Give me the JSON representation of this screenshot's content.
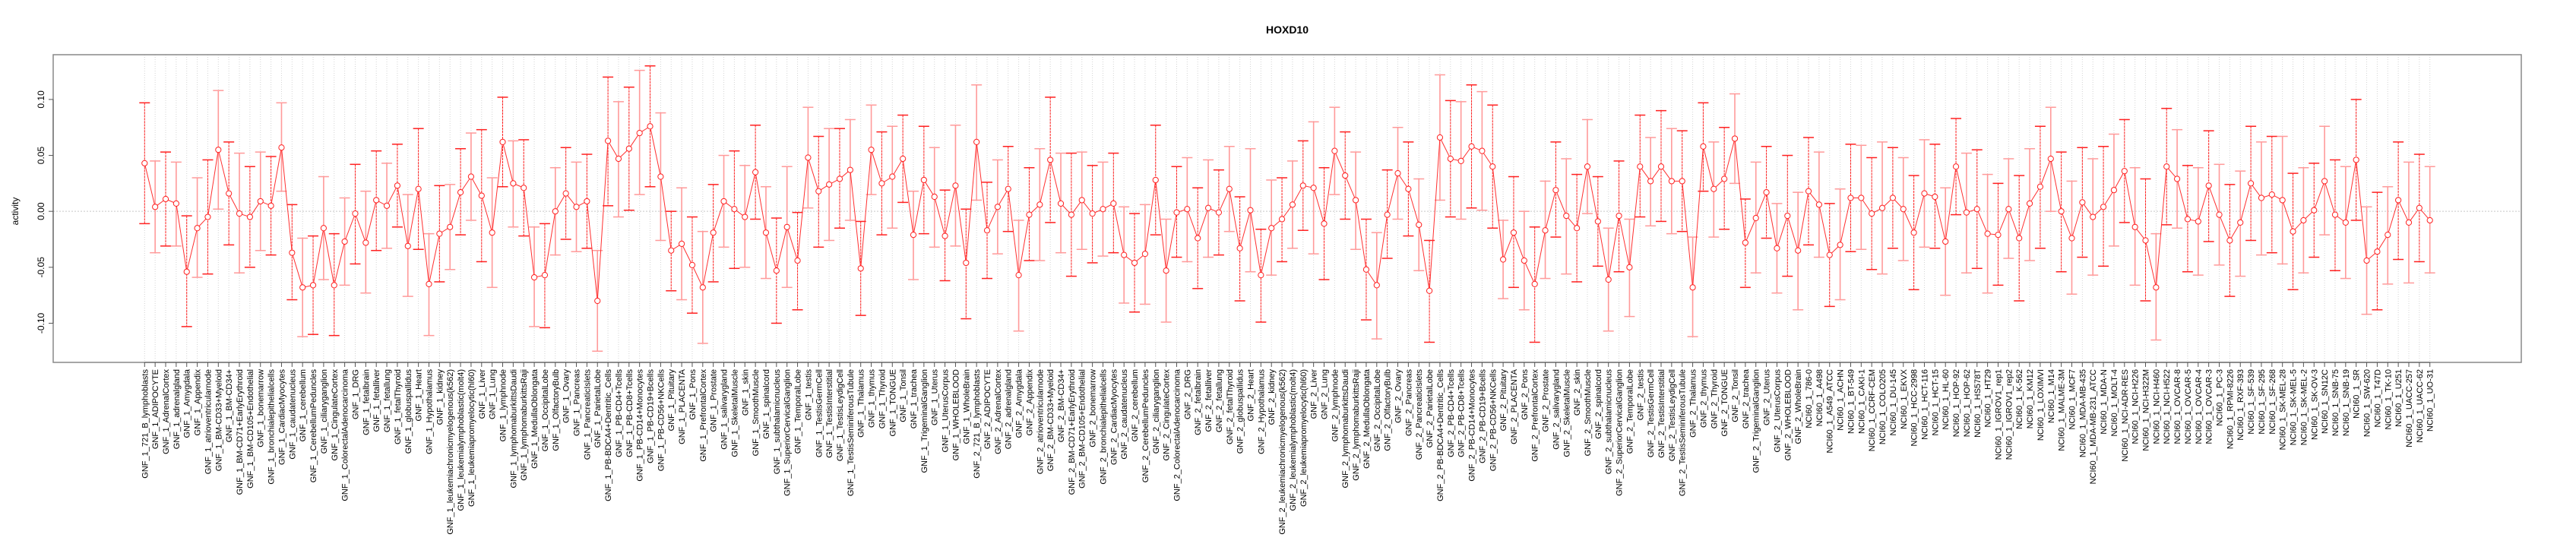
{
  "chart_data": {
    "type": "line",
    "title": "HOXD10",
    "xlabel": "",
    "ylabel": "activity",
    "ylim": [
      -0.135,
      0.14
    ],
    "yticks": [
      -0.1,
      -0.05,
      0.0,
      0.05,
      0.1
    ],
    "ytick_labels": [
      "-0.10",
      "-0.05",
      "0.00",
      "0.05",
      "0.10"
    ],
    "grid": "vertical dotted at each category, horizontal dotted at 0",
    "series_color": "#ff0000",
    "categories": [
      "GNF_1_721_B_lymphoblasts",
      "GNF_1_ADIPOCYTE",
      "GNF_1_AdrenalCortex",
      "GNF_1_adrenalgland",
      "GNF_1_Amygdala",
      "GNF_1_Appendix",
      "GNF_1_atrioventricularnode",
      "GNF_1_BM-CD33+Myeloid",
      "GNF_1_BM-CD34+",
      "GNF_1_BM-CD71+EarlyErythroid",
      "GNF_1_BM-CD105+Endothelial",
      "GNF_1_bonemarrow",
      "GNF_1_bronchialepithelialcells",
      "GNF_1_CardiacMyocytes",
      "GNF_1_caudatenucleus",
      "GNF_1_cerebellum",
      "GNF_1_CerebellumPeduncles",
      "GNF_1_ciliaryganglion",
      "GNF_1_CingulateCortex",
      "GNF_1_ColorectalAdenocarcinoma",
      "GNF_1_DRG",
      "GNF_1_fetalbrain",
      "GNF_1_fetalliver",
      "GNF_1_fetallung",
      "GNF_1_fetalThyroid",
      "GNF_1_globuspallidus",
      "GNF_1_Heart",
      "GNF_1_Hypothalamus",
      "GNF_1_kidney",
      "GNF_1_leukemiachronicmyelogenous(k562)",
      "GNF_1_leukemialymphoblastic(molt4)",
      "GNF_1_leukemiapromyelocytic(hl60)",
      "GNF_1_Liver",
      "GNF_1_Lung",
      "GNF_1_lymphnode",
      "GNF_1_lymphomaburkittsDaudi",
      "GNF_1_lymphomaburkittsRaji",
      "GNF_1_MedullaOblongata",
      "GNF_1_OccipitalLobe",
      "GNF_1_OlfactoryBulb",
      "GNF_1_Ovary",
      "GNF_1_Pancreas",
      "GNF_1_PancreaticIslets",
      "GNF_1_ParietalLobe",
      "GNF_1_PB-BDCA4+Dentritic_Cells",
      "GNF_1_PB-CD4+Tcells",
      "GNF_1_PB-CD8+Tcells",
      "GNF_1_PB-CD14+Monocytes",
      "GNF_1_PB-CD19+Bcells",
      "GNF_1_PB-CD56+NKCells",
      "GNF_1_Pituitary",
      "GNF_1_PLACENTA",
      "GNF_1_Pons",
      "GNF_1_PrefrontalCortex",
      "GNF_1_Prostate",
      "GNF_1_salivarygland",
      "GNF_1_SkeletalMuscle",
      "GNF_1_skin",
      "GNF_1_SmoothMuscle",
      "GNF_1_spinalcord",
      "GNF_1_subthalamicnucleus",
      "GNF_1_SuperiorCervicalGanglion",
      "GNF_1_TemporalLobe",
      "GNF_1_testis",
      "GNF_1_TestisGermCell",
      "GNF_1_TestisInterstitial",
      "GNF_1_TestisLeydigCell",
      "GNF_1_TestisSeminiferousTubule",
      "GNF_1_Thalamus",
      "GNF_1_thymus",
      "GNF_1_Thyroid",
      "GNF_1_TONGUE",
      "GNF_1_Tonsil",
      "GNF_1_trachea",
      "GNF_1_TrigeminalGanglion",
      "GNF_1_Uterus",
      "GNF_1_UterusCorpus",
      "GNF_1_WHOLEBLOOD",
      "GNF_1_WholeBrain",
      "GNF_2_721_B_lymphoblasts",
      "GNF_2_ADIPOCYTE",
      "GNF_2_AdrenalCortex",
      "GNF_2_adrenalgland",
      "GNF_2_Amygdala",
      "GNF_2_Appendix",
      "GNF_2_atrioventricularnode",
      "GNF_2_BM-CD33+Myeloid",
      "GNF_2_BM-CD34+",
      "GNF_2_BM-CD71+EarlyErythroid",
      "GNF_2_BM-CD105+Endothelial",
      "GNF_2_bonemarrow",
      "GNF_2_bronchialepithelialcells",
      "GNF_2_CardiacMyocytes",
      "GNF_2_caudatenucleus",
      "GNF_2_cerebellum",
      "GNF_2_CerebellumPeduncles",
      "GNF_2_ciliaryganglion",
      "GNF_2_CingulateCortex",
      "GNF_2_ColorectalAdenocarcinoma",
      "GNF_2_DRG",
      "GNF_2_fetalbrain",
      "GNF_2_fetalliver",
      "GNF_2_fetallung",
      "GNF_2_fetalThyroid",
      "GNF_2_globuspallidus",
      "GNF_2_Heart",
      "GNF_2_Hypothalamus",
      "GNF_2_kidney",
      "GNF_2_leukemiachronicmyelogenous(k562)",
      "GNF_2_leukemialymphoblastic(molt4)",
      "GNF_2_leukemiapromyelocytic(hl60)",
      "GNF_2_Liver",
      "GNF_2_Lung",
      "GNF_2_lymphnode",
      "GNF_2_lymphomaburkittsDaudi",
      "GNF_2_lymphomaburkittsRaji",
      "GNF_2_MedullaOblongata",
      "GNF_2_OccipitalLobe",
      "GNF_2_OlfactoryBulb",
      "GNF_2_Ovary",
      "GNF_2_Pancreas",
      "GNF_2_PancreaticIslets",
      "GNF_2_ParietalLobe",
      "GNF_2_PB-BDCA4+Dentritic_Cells",
      "GNF_2_PB-CD4+Tcells",
      "GNF_2_PB-CD8+Tcells",
      "GNF_2_PB-CD14+Monocytes",
      "GNF_2_PB-CD19+Bcells",
      "GNF_2_PB-CD56+NKCells",
      "GNF_2_Pituitary",
      "GNF_2_PLACENTA",
      "GNF_2_Pons",
      "GNF_2_PrefrontalCortex",
      "GNF_2_Prostate",
      "GNF_2_salivarygland",
      "GNF_2_SkeletalMuscle",
      "GNF_2_skin",
      "GNF_2_SmoothMuscle",
      "GNF_2_spinalcord",
      "GNF_2_subthalamicnucleus",
      "GNF_2_SuperiorCervicalGanglion",
      "GNF_2_TemporalLobe",
      "GNF_2_testis",
      "GNF_2_TestisGermCell",
      "GNF_2_TestisInterstitial",
      "GNF_2_TestisLeydigCell",
      "GNF_2_TestisSeminiferousTubule",
      "GNF_2_Thalamus",
      "GNF_2_thymus",
      "GNF_2_Thyroid",
      "GNF_2_TONGUE",
      "GNF_2_Tonsil",
      "GNF_2_trachea",
      "GNF_2_TrigeminalGanglion",
      "GNF_2_Uterus",
      "GNF_2_UterusCorpus",
      "GNF_2_WHOLEBLOOD",
      "GNF_2_WholeBrain",
      "NCI60_1_786-0",
      "NCI60_1_A498",
      "NCI60_1_A549_ATCC",
      "NCI60_1_ACHN",
      "NCI60_1_BT-549",
      "NCI60_1_CAKI-1",
      "NCI60_1_CCRF-CEM",
      "NCI60_1_COLO205",
      "NCI60_1_DU-145",
      "NCI60_1_EKVX",
      "NCI60_1_HCC-2998",
      "NCI60_1_HCT-116",
      "NCI60_1_HCT-15",
      "NCI60_1_HL-60",
      "NCI60_1_HOP-92",
      "NCI60_1_HOP-62",
      "NCI60_1_HS578T",
      "NCI60_1_HT29",
      "NCI60_1_IGROV1_rep1",
      "NCI60_1_IGROV1_rep2",
      "NCI60_1_K-562",
      "NCI60_1_KM12",
      "NCI60_1_LOXIMVI",
      "NCI60_1_M14",
      "NCI60_1_MALME-3M",
      "NCI60_1_MCF7",
      "NCI60_1_MDA-MB-435",
      "NCI60_1_MDA-MB-231_ATCC",
      "NCI60_1_MDA-N",
      "NCI60_1_MOLT-4",
      "NCI60_1_NCI-ADR-RES",
      "NCI60_1_NCI-H226",
      "NCI60_1_NCI-H322M",
      "NCI60_1_NCI-H460",
      "NCI60_1_NCI-H522",
      "NCI60_1_OVCAR-8",
      "NCI60_1_OVCAR-5",
      "NCI60_1_OVCAR-4",
      "NCI60_1_OVCAR-3",
      "NCI60_1_PC-3",
      "NCI60_1_RPMI-8226",
      "NCI60_1_RXF-393",
      "NCI60_1_SF-539",
      "NCI60_1_SF-295",
      "NCI60_1_SF-268",
      "NCI60_1_SK-MEL-28",
      "NCI60_1_SK-MEL-5",
      "NCI60_1_SK-MEL-2",
      "NCI60_1_SK-OV-3",
      "NCI60_1_SN12C",
      "NCI60_1_SNB-75",
      "NCI60_1_SNB-19",
      "NCI60_1_SR",
      "NCI60_1_SW-620",
      "NCI60_1_T47D",
      "NCI60_1_TK-10",
      "NCI60_1_U251",
      "NCI60_1_UACC-257",
      "NCI60_1_UACC-62",
      "NCI60_1_UO-31"
    ],
    "series": [
      {
        "name": "activity",
        "values": [
          0.043,
          0.004,
          0.011,
          0.007,
          -0.054,
          -0.015,
          -0.005,
          0.055,
          0.016,
          -0.002,
          -0.005,
          0.009,
          0.005,
          0.057,
          -0.037,
          -0.068,
          -0.066,
          -0.015,
          -0.066,
          -0.027,
          -0.002,
          -0.028,
          0.01,
          0.005,
          0.023,
          -0.031,
          0.02,
          -0.065,
          -0.02,
          -0.014,
          0.017,
          0.031,
          0.014,
          -0.019,
          0.062,
          0.025,
          0.021,
          -0.059,
          -0.057,
          0.0,
          0.016,
          0.004,
          0.009,
          -0.08,
          0.063,
          0.047,
          0.056,
          0.07,
          0.076,
          0.031,
          -0.035,
          -0.029,
          -0.048,
          -0.068,
          -0.019,
          0.009,
          0.002,
          -0.005,
          0.035,
          -0.019,
          -0.053,
          -0.014,
          -0.044,
          0.048,
          0.018,
          0.024,
          0.029,
          0.037,
          -0.051,
          0.055,
          0.025,
          0.031,
          0.047,
          -0.021,
          0.028,
          0.013,
          -0.022,
          0.023,
          -0.046,
          0.062,
          -0.017,
          0.004,
          0.02,
          -0.057,
          -0.003,
          0.006,
          0.046,
          0.007,
          -0.003,
          0.01,
          -0.002,
          0.002,
          0.007,
          -0.039,
          -0.046,
          -0.038,
          0.028,
          -0.053,
          -0.001,
          0.002,
          -0.024,
          0.003,
          -0.001,
          0.02,
          -0.033,
          0.001,
          -0.057,
          -0.015,
          -0.007,
          0.006,
          0.023,
          0.021,
          -0.011,
          0.054,
          0.032,
          0.01,
          -0.052,
          -0.066,
          -0.003,
          0.034,
          0.02,
          -0.012,
          -0.071,
          0.066,
          0.047,
          0.045,
          0.058,
          0.054,
          0.04,
          -0.043,
          -0.019,
          -0.044,
          -0.065,
          -0.017,
          0.019,
          -0.004,
          -0.015,
          0.04,
          -0.009,
          -0.061,
          -0.004,
          -0.05,
          0.04,
          0.027,
          0.04,
          0.027,
          0.027,
          -0.068,
          0.058,
          0.02,
          0.029,
          0.065,
          -0.028,
          -0.006,
          0.017,
          -0.033,
          -0.004,
          -0.035,
          0.018,
          0.006,
          -0.039,
          -0.03,
          0.012,
          0.012,
          -0.002,
          0.003,
          0.012,
          0.002,
          -0.019,
          0.016,
          0.013,
          -0.027,
          0.04,
          -0.001,
          0.002,
          -0.02,
          -0.021,
          0.002,
          -0.024,
          0.007,
          0.022,
          0.047,
          0.0,
          -0.024,
          0.008,
          -0.005,
          0.004,
          0.019,
          0.036,
          -0.014,
          -0.026,
          -0.068,
          0.04,
          0.029,
          -0.007,
          -0.009,
          0.023,
          -0.003,
          -0.026,
          -0.01,
          0.025,
          0.012,
          0.015,
          0.01,
          -0.018,
          -0.008,
          0.001,
          0.027,
          -0.003,
          -0.01,
          0.046,
          -0.044,
          -0.036,
          -0.021,
          0.01,
          -0.01,
          0.003,
          -0.008
        ],
        "lower": [
          -0.011,
          -0.037,
          -0.031,
          -0.031,
          -0.103,
          -0.059,
          -0.056,
          0.002,
          -0.03,
          -0.055,
          -0.05,
          -0.035,
          -0.039,
          0.018,
          -0.079,
          -0.112,
          -0.11,
          -0.061,
          -0.111,
          -0.066,
          -0.047,
          -0.073,
          -0.035,
          -0.033,
          -0.014,
          -0.076,
          -0.034,
          -0.111,
          -0.063,
          -0.052,
          -0.021,
          -0.008,
          -0.045,
          -0.068,
          0.022,
          -0.014,
          -0.022,
          -0.103,
          -0.104,
          -0.039,
          -0.025,
          -0.036,
          -0.033,
          -0.125,
          0.005,
          -0.005,
          0.001,
          0.015,
          0.022,
          -0.026,
          -0.071,
          -0.079,
          -0.091,
          -0.118,
          -0.063,
          -0.032,
          -0.051,
          -0.05,
          -0.007,
          -0.06,
          -0.1,
          -0.068,
          -0.088,
          0.003,
          -0.032,
          -0.026,
          -0.015,
          -0.008,
          -0.093,
          0.015,
          -0.021,
          -0.015,
          0.008,
          -0.061,
          -0.02,
          -0.032,
          -0.062,
          -0.031,
          -0.096,
          0.01,
          -0.06,
          -0.038,
          -0.018,
          -0.107,
          -0.044,
          -0.044,
          -0.01,
          -0.037,
          -0.058,
          -0.034,
          -0.046,
          -0.04,
          -0.037,
          -0.082,
          -0.09,
          -0.083,
          -0.021,
          -0.099,
          -0.041,
          -0.045,
          -0.069,
          -0.041,
          -0.039,
          -0.018,
          -0.08,
          -0.054,
          -0.099,
          -0.057,
          -0.045,
          -0.033,
          -0.017,
          -0.038,
          -0.061,
          0.015,
          -0.007,
          -0.034,
          -0.097,
          -0.114,
          -0.042,
          -0.007,
          -0.022,
          -0.053,
          -0.117,
          0.01,
          -0.005,
          -0.007,
          0.003,
          0.001,
          -0.015,
          -0.078,
          -0.068,
          -0.088,
          -0.117,
          -0.06,
          -0.023,
          -0.056,
          -0.063,
          -0.002,
          -0.049,
          -0.107,
          -0.054,
          -0.094,
          -0.005,
          -0.013,
          -0.009,
          -0.02,
          -0.018,
          -0.112,
          0.018,
          -0.023,
          -0.016,
          0.025,
          -0.068,
          -0.055,
          -0.024,
          -0.073,
          -0.058,
          -0.088,
          -0.03,
          -0.041,
          -0.085,
          -0.079,
          -0.036,
          -0.034,
          -0.052,
          -0.056,
          -0.033,
          -0.044,
          -0.07,
          -0.032,
          -0.033,
          -0.075,
          -0.003,
          -0.055,
          -0.051,
          -0.073,
          -0.066,
          -0.042,
          -0.08,
          -0.044,
          -0.033,
          0.0,
          -0.054,
          -0.074,
          -0.041,
          -0.057,
          -0.049,
          -0.031,
          -0.01,
          -0.066,
          -0.08,
          -0.115,
          -0.012,
          -0.015,
          -0.054,
          -0.057,
          -0.027,
          -0.048,
          -0.076,
          -0.058,
          -0.026,
          -0.039,
          -0.037,
          -0.047,
          -0.07,
          -0.055,
          -0.041,
          -0.021,
          -0.053,
          -0.06,
          -0.008,
          -0.092,
          -0.088,
          -0.065,
          -0.043,
          -0.064,
          -0.045,
          -0.055
        ],
        "upper": [
          0.097,
          0.045,
          0.053,
          0.044,
          -0.004,
          0.03,
          0.046,
          0.108,
          0.062,
          0.052,
          0.04,
          0.053,
          0.049,
          0.097,
          0.006,
          -0.024,
          -0.022,
          0.031,
          -0.02,
          0.012,
          0.042,
          0.018,
          0.054,
          0.043,
          0.06,
          0.015,
          0.074,
          -0.02,
          0.023,
          0.024,
          0.056,
          0.07,
          0.073,
          0.03,
          0.102,
          0.063,
          0.064,
          -0.014,
          -0.011,
          0.039,
          0.057,
          0.044,
          0.051,
          -0.035,
          0.12,
          0.098,
          0.111,
          0.126,
          0.13,
          0.088,
          0.0,
          0.021,
          -0.005,
          -0.018,
          0.024,
          0.05,
          0.054,
          0.041,
          0.077,
          0.022,
          -0.006,
          0.04,
          -0.001,
          0.093,
          0.067,
          0.074,
          0.074,
          0.082,
          -0.009,
          0.095,
          0.071,
          0.076,
          0.086,
          0.018,
          0.076,
          0.057,
          0.019,
          0.077,
          0.002,
          0.113,
          0.026,
          0.046,
          0.058,
          -0.008,
          0.039,
          0.056,
          0.102,
          0.052,
          0.052,
          0.053,
          0.041,
          0.044,
          0.052,
          0.004,
          -0.002,
          0.006,
          0.077,
          -0.007,
          0.04,
          0.048,
          0.021,
          0.046,
          0.037,
          0.058,
          0.013,
          0.056,
          -0.016,
          0.028,
          0.03,
          0.045,
          0.063,
          0.08,
          0.039,
          0.093,
          0.071,
          0.053,
          -0.007,
          -0.019,
          0.037,
          0.075,
          0.062,
          0.029,
          -0.026,
          0.122,
          0.099,
          0.098,
          0.113,
          0.107,
          0.095,
          -0.008,
          0.031,
          0.0,
          -0.014,
          0.027,
          0.062,
          0.047,
          0.033,
          0.082,
          0.031,
          -0.015,
          0.045,
          -0.007,
          0.086,
          0.066,
          0.09,
          0.074,
          0.072,
          -0.023,
          0.097,
          0.062,
          0.075,
          0.105,
          0.011,
          0.044,
          0.058,
          0.007,
          0.05,
          0.017,
          0.066,
          0.053,
          0.007,
          0.02,
          0.06,
          0.059,
          0.048,
          0.062,
          0.057,
          0.048,
          0.032,
          0.064,
          0.06,
          0.021,
          0.083,
          0.052,
          0.055,
          0.033,
          0.025,
          0.047,
          0.032,
          0.056,
          0.076,
          0.093,
          0.053,
          0.027,
          0.057,
          0.047,
          0.058,
          0.069,
          0.082,
          0.039,
          0.029,
          -0.02,
          0.092,
          0.073,
          0.041,
          0.039,
          0.072,
          0.042,
          0.024,
          0.036,
          0.076,
          0.062,
          0.067,
          0.067,
          0.034,
          0.039,
          0.043,
          0.076,
          0.046,
          0.04,
          0.1,
          0.004,
          0.017,
          0.022,
          0.062,
          0.044,
          0.051,
          0.04
        ]
      }
    ]
  }
}
